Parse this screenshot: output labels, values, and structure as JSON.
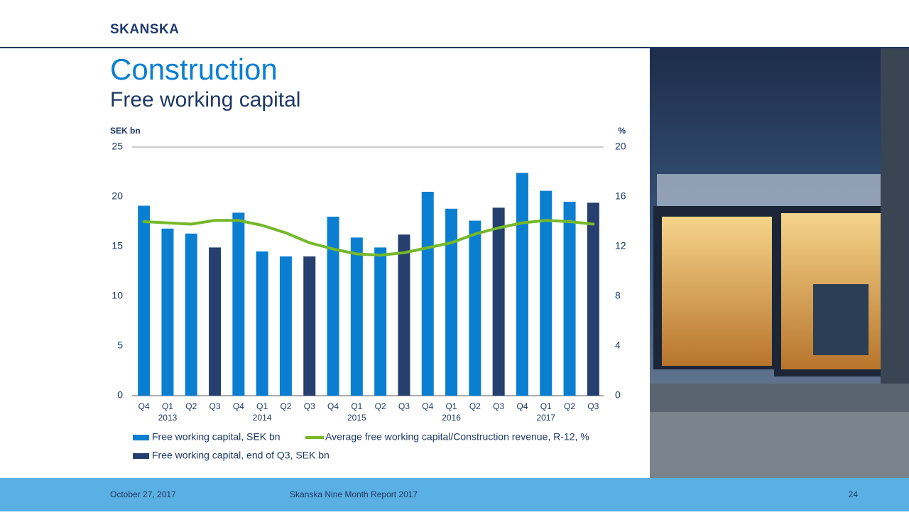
{
  "header": {
    "logo": "SKANSKA"
  },
  "chart_data": {
    "type": "bar",
    "title": "Construction",
    "subtitle": "Free working capital",
    "y_label": "SEK bn",
    "y2_label": "%",
    "categories": [
      "Q4",
      "Q1",
      "Q2",
      "Q3",
      "Q4",
      "Q1",
      "Q2",
      "Q3",
      "Q4",
      "Q1",
      "Q2",
      "Q3",
      "Q4",
      "Q1",
      "Q2",
      "Q3",
      "Q4",
      "Q1",
      "Q2",
      "Q3"
    ],
    "category_years": [
      null,
      "2013",
      null,
      null,
      null,
      "2014",
      null,
      null,
      null,
      "2015",
      null,
      null,
      null,
      "2016",
      null,
      null,
      null,
      "2017",
      null,
      null
    ],
    "series": [
      {
        "name": "Free working capital, SEK bn",
        "type": "bar",
        "color": "#0a7fd1",
        "values": [
          19.1,
          16.8,
          16.3,
          null,
          18.4,
          14.5,
          14.0,
          null,
          18.0,
          15.9,
          14.9,
          null,
          20.5,
          18.8,
          17.6,
          null,
          22.4,
          20.6,
          19.5,
          null
        ]
      },
      {
        "name": "Average free working capital/Construction revenue, R-12, %",
        "type": "line",
        "axis": "y2",
        "color": "#76b82a",
        "values": [
          14.0,
          13.9,
          13.8,
          14.1,
          14.1,
          13.7,
          13.1,
          12.3,
          11.8,
          11.4,
          11.3,
          11.5,
          11.9,
          12.3,
          13.0,
          13.5,
          13.9,
          14.1,
          14.0,
          13.8
        ]
      },
      {
        "name": "Free working capital, end of Q3, SEK bn",
        "type": "bar",
        "color": "#253f6e",
        "values": [
          null,
          null,
          null,
          14.9,
          null,
          null,
          null,
          14.0,
          null,
          null,
          null,
          16.2,
          null,
          null,
          null,
          18.9,
          null,
          null,
          null,
          19.4
        ]
      }
    ],
    "ylim": [
      0,
      25
    ],
    "yticks": [
      0,
      5,
      10,
      15,
      20,
      25
    ],
    "y2lim": [
      0,
      20
    ],
    "y2ticks": [
      0,
      4,
      8,
      12,
      16,
      20
    ],
    "grid": false,
    "legend": "bottom"
  },
  "footer": {
    "date": "October 27, 2017",
    "report": "Skanska Nine Month Report 2017",
    "page": "24"
  }
}
